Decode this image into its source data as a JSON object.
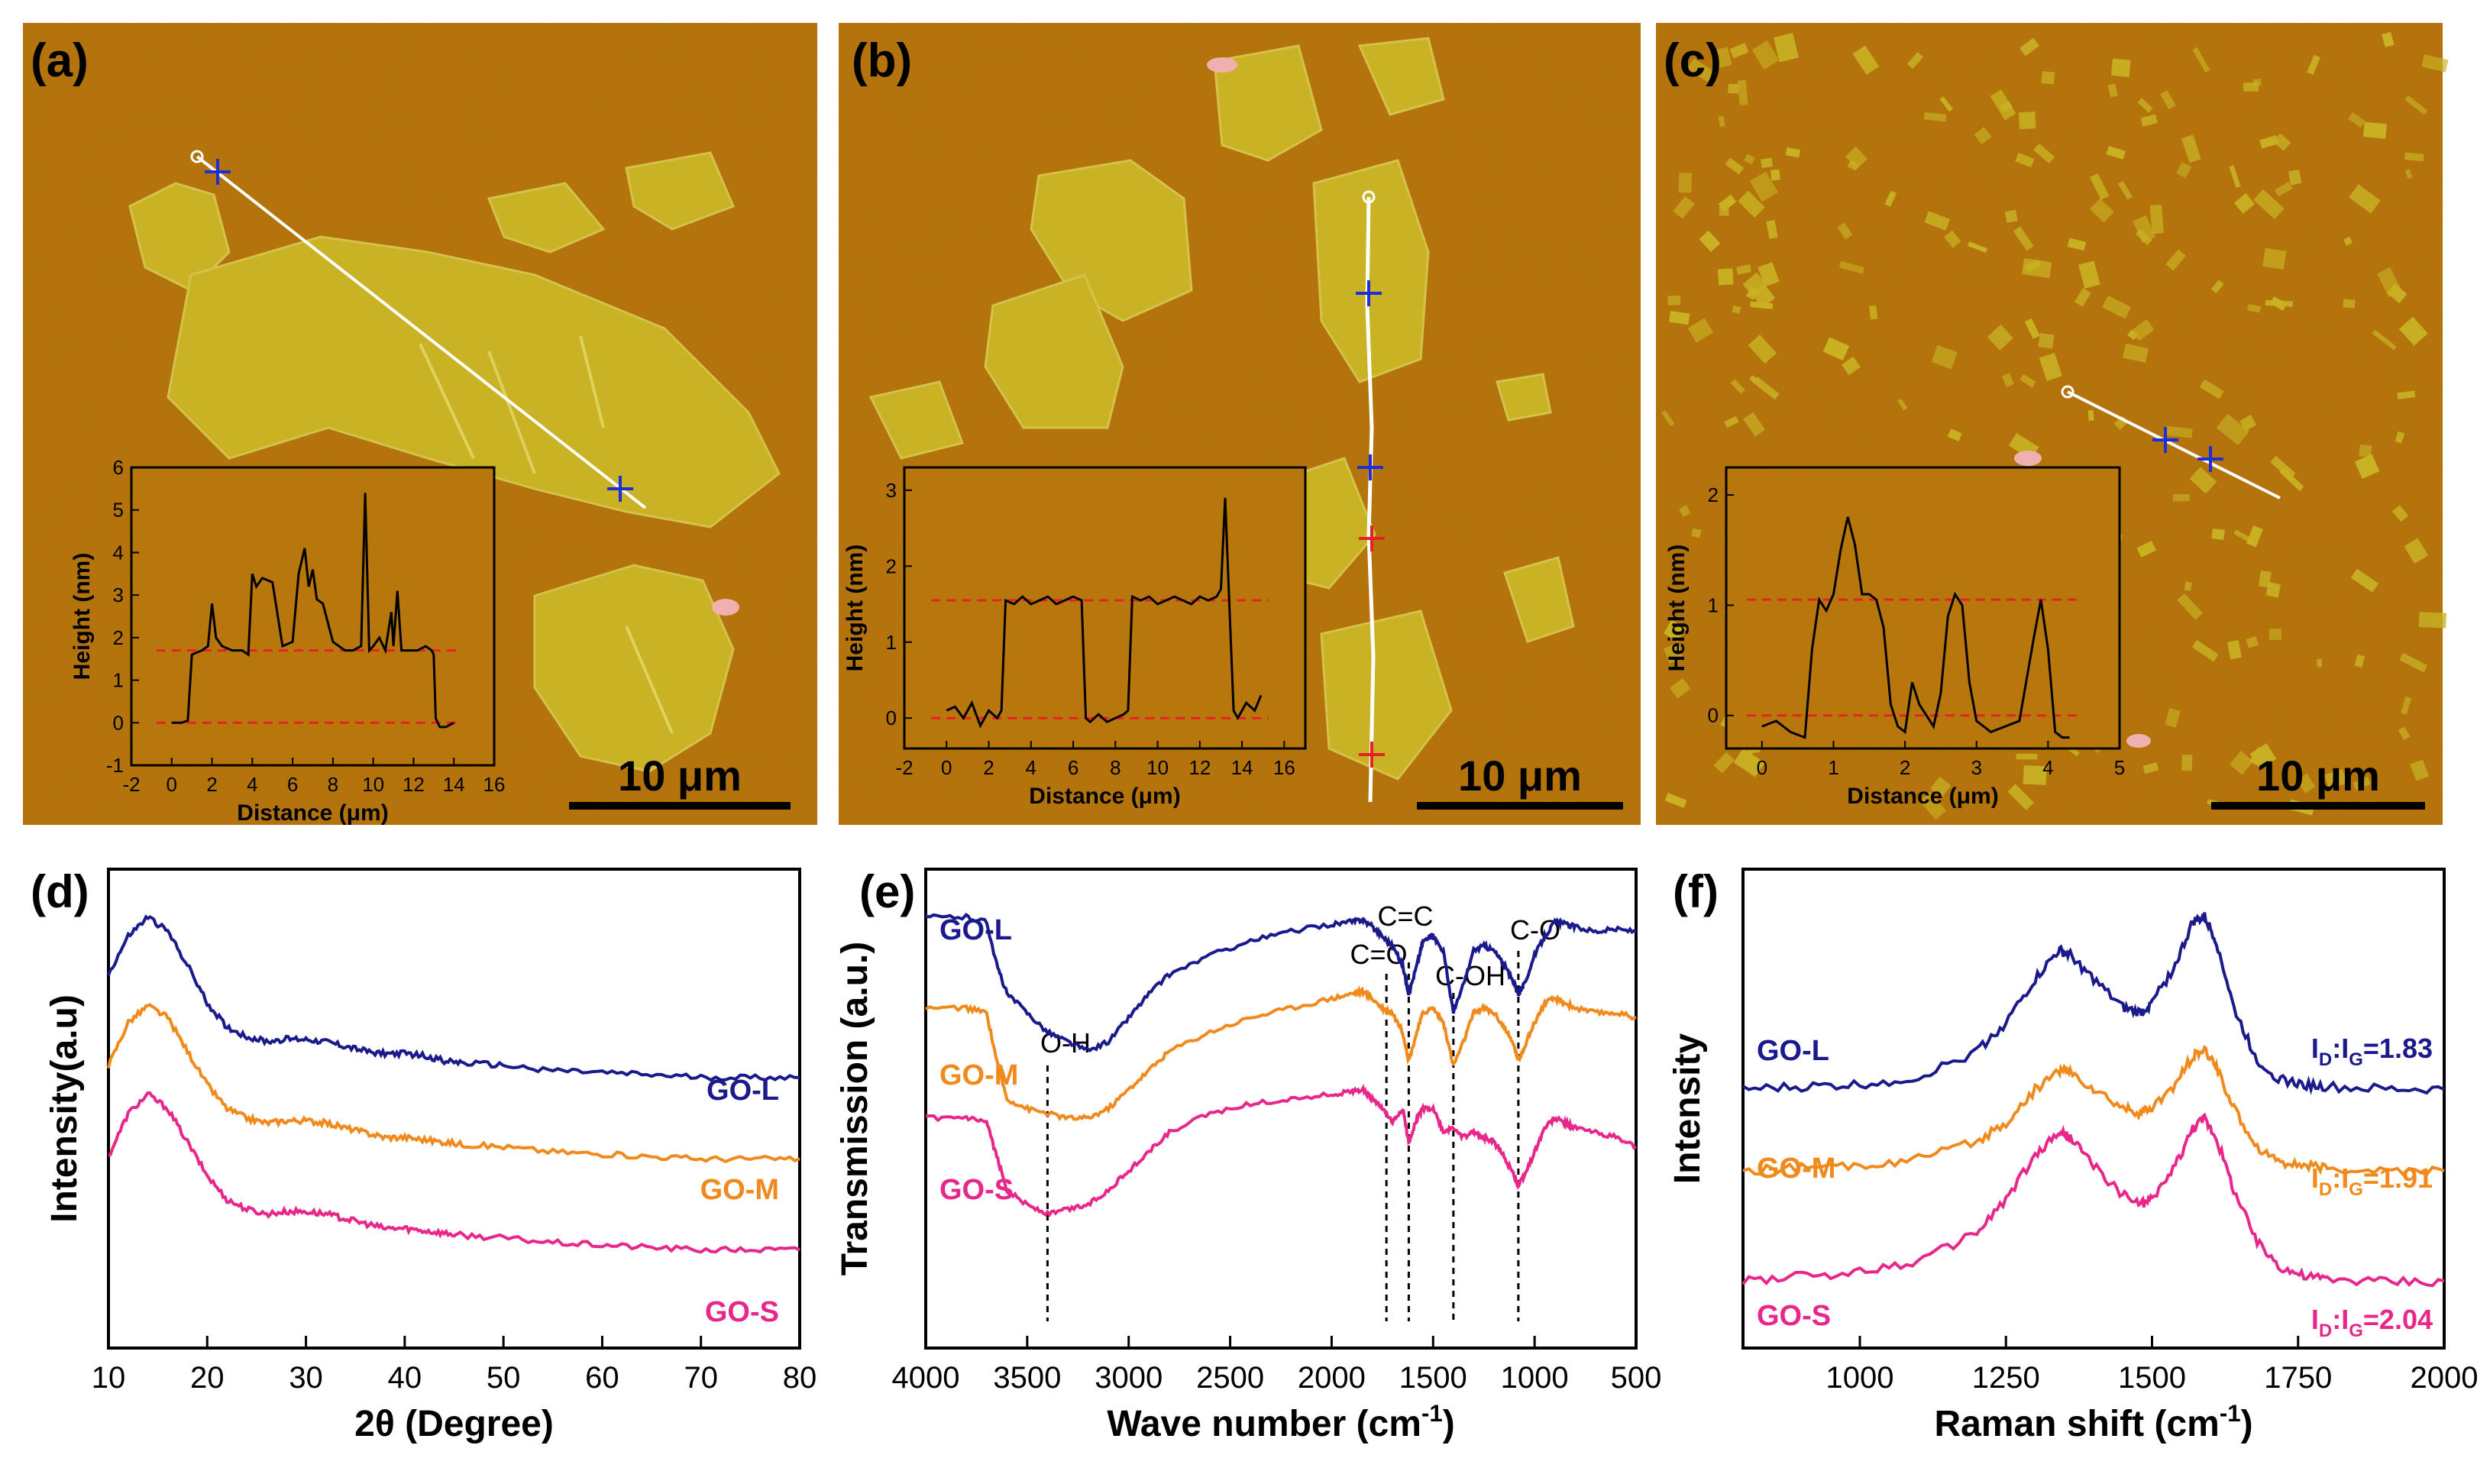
{
  "chart_data": [
    {
      "type": "image-with-inset-line",
      "panel": "(a)",
      "scale_bar": "10 μm",
      "inset": {
        "xlabel": "Distance (μm)",
        "ylabel": "Height (nm)",
        "xlim": [
          -2,
          16
        ],
        "ylim": [
          -1,
          6
        ],
        "xticks": [
          "-2",
          "0",
          "2",
          "4",
          "6",
          "8",
          "10",
          "12",
          "14",
          "16"
        ],
        "yticks": [
          "-1",
          "0",
          "1",
          "2",
          "3",
          "4",
          "5",
          "6"
        ],
        "ref_lines": [
          0,
          1.7
        ],
        "x": [
          0,
          0.5,
          0.8,
          1.0,
          1.5,
          1.8,
          2.0,
          2.2,
          2.5,
          3.0,
          3.5,
          3.8,
          4.0,
          4.2,
          4.5,
          5.0,
          5.5,
          6.0,
          6.3,
          6.6,
          6.8,
          7.0,
          7.2,
          7.5,
          8.0,
          8.3,
          8.6,
          9.0,
          9.4,
          9.6,
          9.8,
          10.0,
          10.3,
          10.6,
          10.9,
          11.0,
          11.2,
          11.4,
          11.8,
          12.2,
          12.6,
          12.9,
          13.0,
          13.1,
          13.3,
          13.6,
          14.0
        ],
        "y": [
          0,
          0,
          0.05,
          1.6,
          1.7,
          1.8,
          2.8,
          2.0,
          1.8,
          1.7,
          1.7,
          1.6,
          3.5,
          3.2,
          3.4,
          3.3,
          1.8,
          1.9,
          3.5,
          4.1,
          3.2,
          3.6,
          2.9,
          2.8,
          1.9,
          1.8,
          1.7,
          1.7,
          1.8,
          5.4,
          1.7,
          1.8,
          2.0,
          1.7,
          2.6,
          1.8,
          3.1,
          1.7,
          1.7,
          1.7,
          1.8,
          1.7,
          1.6,
          0.1,
          -0.1,
          -0.1,
          0
        ]
      }
    },
    {
      "type": "image-with-inset-line",
      "panel": "(b)",
      "scale_bar": "10 μm",
      "inset": {
        "xlabel": "Distance (μm)",
        "ylabel": "Height (nm)",
        "xlim": [
          -2,
          17
        ],
        "ylim": [
          -0.4,
          3.3
        ],
        "xticks": [
          "-2",
          "0",
          "2",
          "4",
          "6",
          "8",
          "10",
          "12",
          "14",
          "16"
        ],
        "yticks": [
          "0",
          "1",
          "2",
          "3"
        ],
        "ref_lines": [
          0,
          1.55
        ],
        "x": [
          0,
          0.4,
          0.8,
          1.2,
          1.6,
          2.0,
          2.4,
          2.6,
          2.8,
          3.2,
          3.6,
          4.0,
          4.4,
          4.8,
          5.2,
          5.6,
          6.0,
          6.4,
          6.6,
          6.8,
          7.2,
          7.6,
          8.0,
          8.4,
          8.6,
          8.8,
          9.2,
          9.6,
          10.0,
          10.4,
          10.8,
          11.2,
          11.6,
          12.0,
          12.4,
          12.8,
          13.0,
          13.2,
          13.4,
          13.6,
          13.8,
          14.2,
          14.6,
          14.9
        ],
        "y": [
          0.1,
          0.15,
          0,
          0.2,
          -0.1,
          0.1,
          0,
          0.1,
          1.55,
          1.5,
          1.6,
          1.5,
          1.55,
          1.6,
          1.5,
          1.55,
          1.6,
          1.55,
          0,
          -0.05,
          0.05,
          -0.05,
          0,
          0.05,
          0.1,
          1.6,
          1.55,
          1.6,
          1.5,
          1.55,
          1.6,
          1.55,
          1.5,
          1.6,
          1.55,
          1.6,
          1.7,
          2.9,
          1.5,
          0.1,
          0,
          0.2,
          0.1,
          0.3
        ]
      }
    },
    {
      "type": "image-with-inset-line",
      "panel": "(c)",
      "scale_bar": "10 μm",
      "inset": {
        "xlabel": "Distance (μm)",
        "ylabel": "Height (nm)",
        "xlim": [
          -0.5,
          5
        ],
        "ylim": [
          -0.3,
          2.25
        ],
        "xticks": [
          "0",
          "1",
          "2",
          "3",
          "4",
          "5"
        ],
        "yticks": [
          "0",
          "1",
          "2"
        ],
        "ref_lines": [
          0,
          1.05
        ],
        "x": [
          0,
          0.2,
          0.4,
          0.6,
          0.7,
          0.8,
          0.9,
          1.0,
          1.1,
          1.2,
          1.3,
          1.4,
          1.5,
          1.6,
          1.7,
          1.8,
          1.9,
          2.0,
          2.1,
          2.2,
          2.3,
          2.4,
          2.5,
          2.6,
          2.7,
          2.8,
          2.9,
          3.0,
          3.1,
          3.2,
          3.4,
          3.6,
          3.8,
          3.9,
          4.0,
          4.1,
          4.2,
          4.3
        ],
        "y": [
          -0.1,
          -0.05,
          -0.15,
          -0.2,
          0.6,
          1.05,
          0.95,
          1.1,
          1.5,
          1.8,
          1.55,
          1.1,
          1.1,
          1.05,
          0.8,
          0.1,
          -0.1,
          -0.15,
          0.3,
          0.1,
          0,
          -0.1,
          0.2,
          0.9,
          1.1,
          1.0,
          0.3,
          -0.05,
          -0.1,
          -0.15,
          -0.1,
          -0.05,
          0.7,
          1.05,
          0.6,
          -0.15,
          -0.2,
          -0.2
        ]
      }
    },
    {
      "type": "line",
      "panel": "(d)",
      "xlabel": "2θ (Degree)",
      "ylabel": "Intensity(a.u)",
      "xlim": [
        10,
        80
      ],
      "xticks": [
        "10",
        "20",
        "30",
        "40",
        "50",
        "60",
        "70",
        "80"
      ],
      "series": [
        {
          "name": "GO-L",
          "color": "#1a1a8c",
          "x": [
            10,
            12,
            14,
            16,
            18,
            20,
            22,
            24,
            26,
            28,
            30,
            32,
            34,
            36,
            38,
            40,
            42,
            44,
            46,
            50,
            55,
            60,
            65,
            70,
            75,
            80
          ],
          "y": [
            0.78,
            0.86,
            0.9,
            0.87,
            0.8,
            0.72,
            0.67,
            0.65,
            0.64,
            0.645,
            0.645,
            0.64,
            0.63,
            0.62,
            0.615,
            0.615,
            0.61,
            0.6,
            0.595,
            0.59,
            0.58,
            0.575,
            0.57,
            0.565,
            0.565,
            0.565
          ]
        },
        {
          "name": "GO-M",
          "color": "#f18a1c",
          "x": [
            10,
            12,
            14,
            16,
            18,
            20,
            22,
            24,
            26,
            28,
            30,
            32,
            34,
            36,
            38,
            40,
            42,
            44,
            46,
            50,
            55,
            60,
            65,
            70,
            75,
            80
          ],
          "y": [
            0.59,
            0.68,
            0.715,
            0.69,
            0.62,
            0.55,
            0.5,
            0.48,
            0.47,
            0.475,
            0.475,
            0.47,
            0.46,
            0.45,
            0.44,
            0.44,
            0.435,
            0.43,
            0.425,
            0.42,
            0.41,
            0.405,
            0.4,
            0.395,
            0.395,
            0.395
          ]
        },
        {
          "name": "GO-S",
          "color": "#e8278a",
          "x": [
            10,
            12,
            14,
            16,
            18,
            20,
            22,
            24,
            26,
            28,
            30,
            32,
            34,
            36,
            38,
            40,
            42,
            44,
            46,
            50,
            55,
            60,
            65,
            70,
            75,
            80
          ],
          "y": [
            0.4,
            0.49,
            0.53,
            0.5,
            0.43,
            0.36,
            0.31,
            0.29,
            0.28,
            0.285,
            0.285,
            0.28,
            0.27,
            0.26,
            0.25,
            0.25,
            0.245,
            0.24,
            0.235,
            0.23,
            0.22,
            0.215,
            0.21,
            0.205,
            0.205,
            0.205
          ]
        }
      ]
    },
    {
      "type": "line",
      "panel": "(e)",
      "xlabel": "Wave number (cm-1)",
      "ylabel": "Transmission (a.u.)",
      "xlim": [
        4000,
        500
      ],
      "x_reversed": true,
      "xticks": [
        "4000",
        "3500",
        "3000",
        "2500",
        "2000",
        "1500",
        "1000",
        "500"
      ],
      "annotations": [
        {
          "label": "O-H",
          "x": 3400
        },
        {
          "label": "C=O",
          "x": 1730
        },
        {
          "label": "C=C",
          "x": 1620
        },
        {
          "label": "C-OH",
          "x": 1400
        },
        {
          "label": "C-O",
          "x": 1080
        }
      ],
      "series": [
        {
          "name": "GO-L",
          "color": "#1a1a8c",
          "x": [
            4000,
            3800,
            3700,
            3650,
            3600,
            3500,
            3400,
            3300,
            3200,
            3100,
            3000,
            2900,
            2800,
            2600,
            2400,
            2200,
            2000,
            1900,
            1850,
            1800,
            1750,
            1700,
            1650,
            1620,
            1580,
            1550,
            1500,
            1450,
            1400,
            1350,
            1300,
            1250,
            1200,
            1150,
            1100,
            1080,
            1050,
            1000,
            950,
            900,
            850,
            800,
            700,
            600,
            500
          ],
          "y": [
            0.9,
            0.9,
            0.89,
            0.8,
            0.74,
            0.7,
            0.66,
            0.64,
            0.62,
            0.64,
            0.69,
            0.74,
            0.78,
            0.82,
            0.85,
            0.87,
            0.885,
            0.89,
            0.895,
            0.88,
            0.86,
            0.84,
            0.8,
            0.74,
            0.8,
            0.85,
            0.86,
            0.83,
            0.7,
            0.76,
            0.83,
            0.84,
            0.83,
            0.8,
            0.76,
            0.74,
            0.76,
            0.82,
            0.86,
            0.89,
            0.885,
            0.88,
            0.87,
            0.875,
            0.87
          ]
        },
        {
          "name": "GO-M",
          "color": "#f18a1c",
          "x": [
            4000,
            3800,
            3700,
            3650,
            3600,
            3500,
            3400,
            3300,
            3200,
            3100,
            3000,
            2900,
            2800,
            2600,
            2400,
            2200,
            2000,
            1900,
            1850,
            1800,
            1750,
            1700,
            1650,
            1620,
            1580,
            1550,
            1500,
            1450,
            1400,
            1350,
            1300,
            1250,
            1200,
            1150,
            1100,
            1080,
            1050,
            1000,
            950,
            900,
            850,
            800,
            700,
            600,
            500
          ],
          "y": [
            0.71,
            0.71,
            0.7,
            0.6,
            0.52,
            0.5,
            0.49,
            0.48,
            0.48,
            0.5,
            0.54,
            0.58,
            0.62,
            0.66,
            0.69,
            0.71,
            0.73,
            0.74,
            0.745,
            0.73,
            0.71,
            0.7,
            0.66,
            0.6,
            0.66,
            0.7,
            0.71,
            0.68,
            0.59,
            0.64,
            0.7,
            0.71,
            0.7,
            0.67,
            0.63,
            0.6,
            0.63,
            0.68,
            0.72,
            0.73,
            0.72,
            0.71,
            0.7,
            0.7,
            0.69
          ]
        },
        {
          "name": "GO-S",
          "color": "#e8278a",
          "x": [
            4000,
            3800,
            3700,
            3650,
            3600,
            3500,
            3400,
            3300,
            3200,
            3100,
            3000,
            2900,
            2800,
            2600,
            2400,
            2200,
            2000,
            1900,
            1850,
            1800,
            1750,
            1700,
            1650,
            1620,
            1580,
            1550,
            1500,
            1450,
            1400,
            1350,
            1300,
            1250,
            1200,
            1150,
            1100,
            1080,
            1050,
            1000,
            950,
            900,
            850,
            800,
            700,
            600,
            500
          ],
          "y": [
            0.48,
            0.48,
            0.47,
            0.4,
            0.33,
            0.3,
            0.28,
            0.29,
            0.3,
            0.33,
            0.37,
            0.41,
            0.45,
            0.49,
            0.51,
            0.52,
            0.53,
            0.535,
            0.54,
            0.52,
            0.5,
            0.47,
            0.5,
            0.43,
            0.48,
            0.5,
            0.5,
            0.45,
            0.46,
            0.44,
            0.45,
            0.44,
            0.43,
            0.4,
            0.36,
            0.34,
            0.36,
            0.41,
            0.46,
            0.48,
            0.47,
            0.46,
            0.45,
            0.44,
            0.42
          ]
        }
      ]
    },
    {
      "type": "line",
      "panel": "(f)",
      "xlabel": "Raman shift (cm-1)",
      "ylabel": "Intensity",
      "xlim": [
        800,
        2000
      ],
      "xticks": [
        "1000",
        "1250",
        "1500",
        "1750",
        "2000"
      ],
      "series": [
        {
          "name": "GO-L",
          "ratio": "ID:IG=1.83",
          "color": "#1a1a8c",
          "x": [
            800,
            900,
            1000,
            1100,
            1200,
            1250,
            1300,
            1340,
            1360,
            1400,
            1450,
            1480,
            1500,
            1540,
            1570,
            1590,
            1610,
            1640,
            1680,
            1720,
            1760,
            1800,
            1900,
            2000
          ],
          "y": [
            0.54,
            0.545,
            0.55,
            0.565,
            0.62,
            0.68,
            0.77,
            0.83,
            0.82,
            0.77,
            0.71,
            0.7,
            0.72,
            0.8,
            0.89,
            0.9,
            0.85,
            0.71,
            0.6,
            0.56,
            0.55,
            0.545,
            0.54,
            0.54
          ]
        },
        {
          "name": "GO-M",
          "ratio": "ID:IG=1.91",
          "color": "#f18a1c",
          "x": [
            800,
            900,
            1000,
            1100,
            1200,
            1250,
            1300,
            1340,
            1360,
            1400,
            1450,
            1480,
            1500,
            1540,
            1570,
            1590,
            1610,
            1640,
            1680,
            1720,
            1760,
            1800,
            1900,
            2000
          ],
          "y": [
            0.37,
            0.375,
            0.38,
            0.395,
            0.43,
            0.47,
            0.54,
            0.58,
            0.575,
            0.54,
            0.5,
            0.49,
            0.5,
            0.55,
            0.61,
            0.62,
            0.59,
            0.5,
            0.42,
            0.39,
            0.38,
            0.375,
            0.37,
            0.37
          ]
        },
        {
          "name": "GO-S",
          "ratio": "ID:IG=2.04",
          "color": "#e8278a",
          "x": [
            800,
            900,
            1000,
            1100,
            1200,
            1250,
            1300,
            1340,
            1360,
            1400,
            1450,
            1480,
            1500,
            1540,
            1570,
            1590,
            1610,
            1640,
            1680,
            1720,
            1760,
            1800,
            1900,
            2000
          ],
          "y": [
            0.14,
            0.15,
            0.16,
            0.18,
            0.24,
            0.31,
            0.4,
            0.45,
            0.44,
            0.38,
            0.32,
            0.3,
            0.31,
            0.38,
            0.46,
            0.48,
            0.44,
            0.33,
            0.22,
            0.17,
            0.15,
            0.145,
            0.14,
            0.14
          ]
        }
      ]
    }
  ]
}
